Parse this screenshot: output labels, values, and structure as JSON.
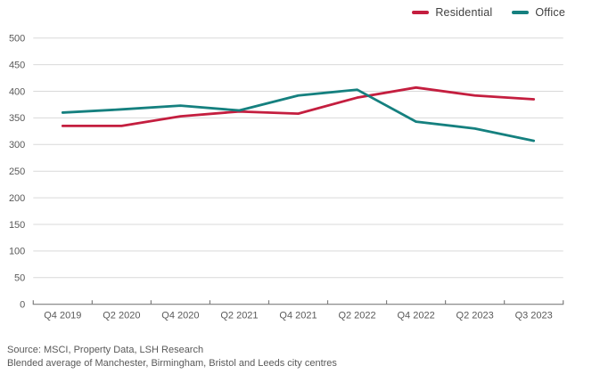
{
  "legend": {
    "items": [
      "Residential",
      "Office"
    ]
  },
  "footer": {
    "source": "Source: MSCI, Property Data, LSH Research",
    "note": "Blended average of Manchester, Birmingham, Bristol and Leeds city centres"
  },
  "colors": {
    "residential": "#C41E3F",
    "office": "#15807F",
    "gridline": "#D9D9D9",
    "axis_line": "#7F7F7F",
    "tick_label": "#595959"
  },
  "chart_data": {
    "type": "line",
    "categories": [
      "Q4 2019",
      "Q2 2020",
      "Q4 2020",
      "Q2 2021",
      "Q4 2021",
      "Q2 2022",
      "Q4 2022",
      "Q2 2023",
      "Q3 2023"
    ],
    "series": [
      {
        "name": "Residential",
        "color": "#C41E3F",
        "values": [
          335,
          335,
          353,
          362,
          358,
          388,
          407,
          392,
          385
        ]
      },
      {
        "name": "Office",
        "color": "#15807F",
        "values": [
          360,
          366,
          373,
          364,
          392,
          403,
          343,
          330,
          307
        ]
      }
    ],
    "title": "",
    "xlabel": "",
    "ylabel": "",
    "ylim": [
      0,
      500
    ],
    "ytick_step": 50,
    "grid": true,
    "legend_position": "top-right"
  }
}
